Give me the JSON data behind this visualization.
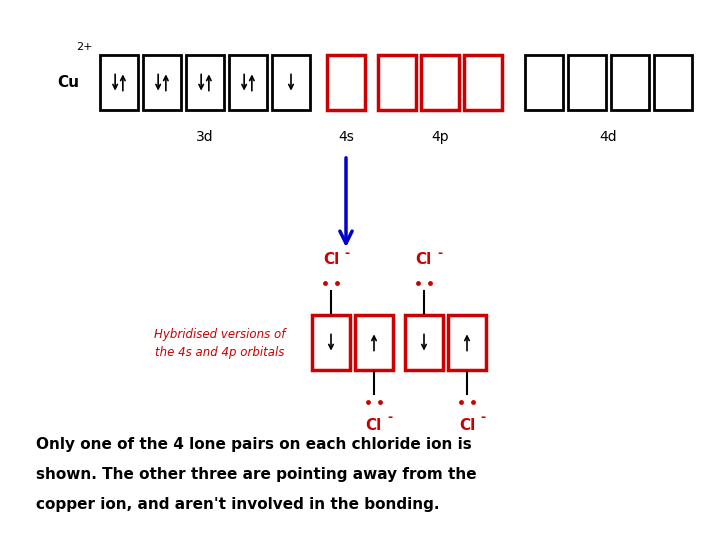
{
  "background_color": "#ffffff",
  "box_color_3d": "#000000",
  "box_color_4s4p": "#cc0000",
  "box_color_4d": "#000000",
  "cl_color": "#cc0000",
  "arrow_color": "#0000cc",
  "caption_line1": "Only one of the 4 lone pairs on each chloride ion is",
  "caption_line2": "shown. The other three are pointing away from the",
  "caption_line3": "copper ion, and aren't involved in the bonding.",
  "bottom_section_label_line1": "Hybridised versions of",
  "bottom_section_label_line2": "the 4s and 4p orbitals"
}
